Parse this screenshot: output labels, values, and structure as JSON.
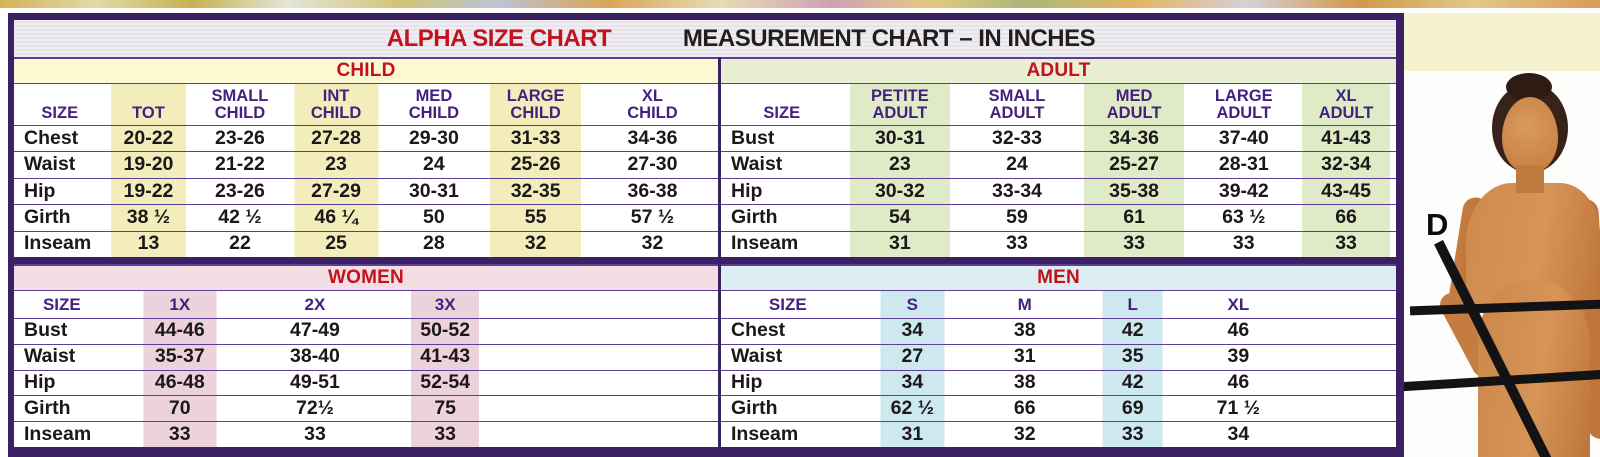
{
  "header": {
    "title_red": "ALPHA SIZE CHART",
    "title_dark": "MEASUREMENT CHART – IN INCHES"
  },
  "colors": {
    "border_purple": "#3b2063",
    "rule_purple": "#5d3d96",
    "header_text_purple": "#45217f",
    "section_title_red": "#c1121d",
    "data_text": "#1c181a",
    "header_strip_gray": "#e6e4e9",
    "right_margin_cream": "#f6f2cf"
  },
  "figure": {
    "label": "D"
  },
  "tables": [
    {
      "id": "child",
      "title": "CHILD",
      "band_color": "#fcf8d2",
      "shade_color": "#f2edbb",
      "columns": [
        "SIZE",
        "TOT",
        "SMALL\nCHILD",
        "INT\nCHILD",
        "MED\nCHILD",
        "LARGE\nCHILD",
        "XL\nCHILD"
      ],
      "rows": [
        {
          "label": "Chest",
          "values": [
            "20-22",
            "23-26",
            "27-28",
            "29-30",
            "31-33",
            "34-36"
          ]
        },
        {
          "label": "Waist",
          "values": [
            "19-20",
            "21-22",
            "23",
            "24",
            "25-26",
            "27-30"
          ]
        },
        {
          "label": "Hip",
          "values": [
            "19-22",
            "23-26",
            "27-29",
            "30-31",
            "32-35",
            "36-38"
          ]
        },
        {
          "label": "Girth",
          "values": [
            "38 ½",
            "42 ½",
            "46 ¼",
            "50",
            "55",
            "57 ½"
          ]
        },
        {
          "label": "Inseam",
          "values": [
            "13",
            "22",
            "25",
            "28",
            "32",
            "32"
          ]
        }
      ]
    },
    {
      "id": "adult",
      "title": "ADULT",
      "band_color": "#e9efd2",
      "shade_color": "#dfeac6",
      "columns": [
        "SIZE",
        "PETITE\nADULT",
        "SMALL\nADULT",
        "MED\nADULT",
        "LARGE\nADULT",
        "XL\nADULT"
      ],
      "rows": [
        {
          "label": "Bust",
          "values": [
            "30-31",
            "32-33",
            "34-36",
            "37-40",
            "41-43"
          ]
        },
        {
          "label": "Waist",
          "values": [
            "23",
            "24",
            "25-27",
            "28-31",
            "32-34"
          ]
        },
        {
          "label": "Hip",
          "values": [
            "30-32",
            "33-34",
            "35-38",
            "39-42",
            "43-45"
          ]
        },
        {
          "label": "Girth",
          "values": [
            "54",
            "59",
            "61",
            "63 ½",
            "66"
          ]
        },
        {
          "label": "Inseam",
          "values": [
            "31",
            "33",
            "33",
            "33",
            "33"
          ]
        }
      ]
    },
    {
      "id": "women",
      "title": "WOMEN",
      "band_color": "#f3dee3",
      "shade_color": "#ecd2da",
      "columns": [
        "SIZE",
        "1X",
        "2X",
        "3X",
        ""
      ],
      "rows": [
        {
          "label": "Bust",
          "values": [
            "44-46",
            "47-49",
            "50-52",
            ""
          ]
        },
        {
          "label": "Waist",
          "values": [
            "35-37",
            "38-40",
            "41-43",
            ""
          ]
        },
        {
          "label": "Hip",
          "values": [
            "46-48",
            "49-51",
            "52-54",
            ""
          ]
        },
        {
          "label": "Girth",
          "values": [
            "70",
            "72½",
            "75",
            ""
          ]
        },
        {
          "label": "Inseam",
          "values": [
            "33",
            "33",
            "33",
            ""
          ]
        }
      ]
    },
    {
      "id": "men",
      "title": "MEN",
      "band_color": "#ddeef2",
      "shade_color": "#cde8ef",
      "columns": [
        "SIZE",
        "S",
        "M",
        "L",
        "XL",
        ""
      ],
      "rows": [
        {
          "label": "Chest",
          "values": [
            "34",
            "38",
            "42",
            "46",
            ""
          ]
        },
        {
          "label": "Waist",
          "values": [
            "27",
            "31",
            "35",
            "39",
            ""
          ]
        },
        {
          "label": "Hip",
          "values": [
            "34",
            "38",
            "42",
            "46",
            ""
          ]
        },
        {
          "label": "Girth",
          "values": [
            "62 ½",
            "66",
            "69",
            "71 ½",
            ""
          ]
        },
        {
          "label": "Inseam",
          "values": [
            "31",
            "32",
            "33",
            "34",
            ""
          ]
        }
      ]
    }
  ]
}
